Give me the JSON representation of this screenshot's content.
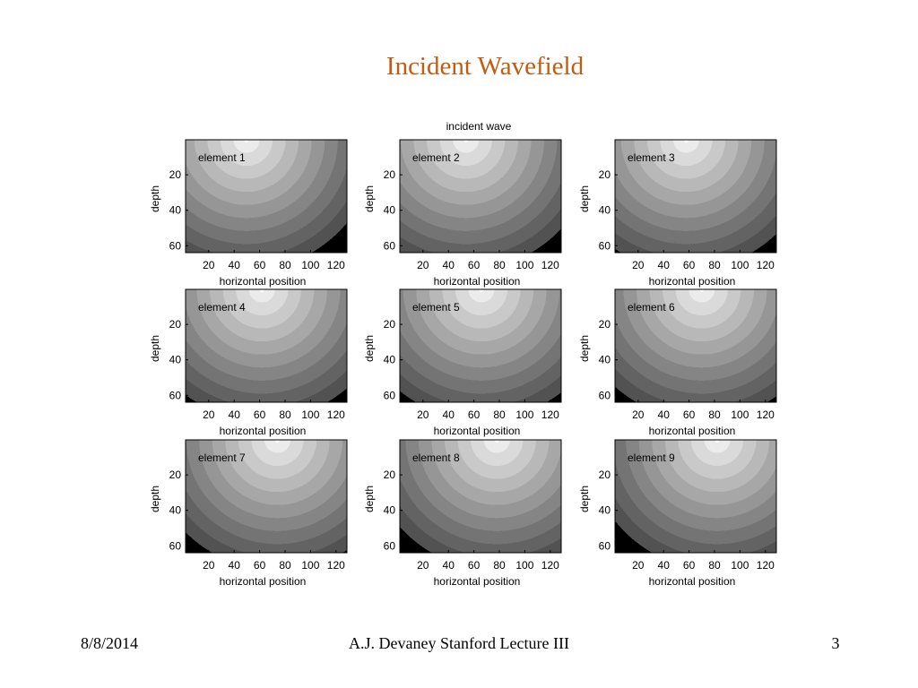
{
  "slide": {
    "title": "Incident Wavefield"
  },
  "figure": {
    "title": "incident wave",
    "x_label": "horizontal position",
    "y_label": "depth",
    "x_ticks": [
      20,
      40,
      60,
      80,
      100,
      120
    ],
    "y_ticks": [
      20,
      40,
      60
    ],
    "panels": [
      {
        "label": "element 1"
      },
      {
        "label": "element 2"
      },
      {
        "label": "element 3"
      },
      {
        "label": "element 4"
      },
      {
        "label": "element 5"
      },
      {
        "label": "element 6"
      },
      {
        "label": "element 7"
      },
      {
        "label": "element 8"
      },
      {
        "label": "element 9"
      }
    ]
  },
  "footer": {
    "date": "8/8/2014",
    "center": "A.J. Devaney Stanford Lecture III",
    "page": "3"
  }
}
